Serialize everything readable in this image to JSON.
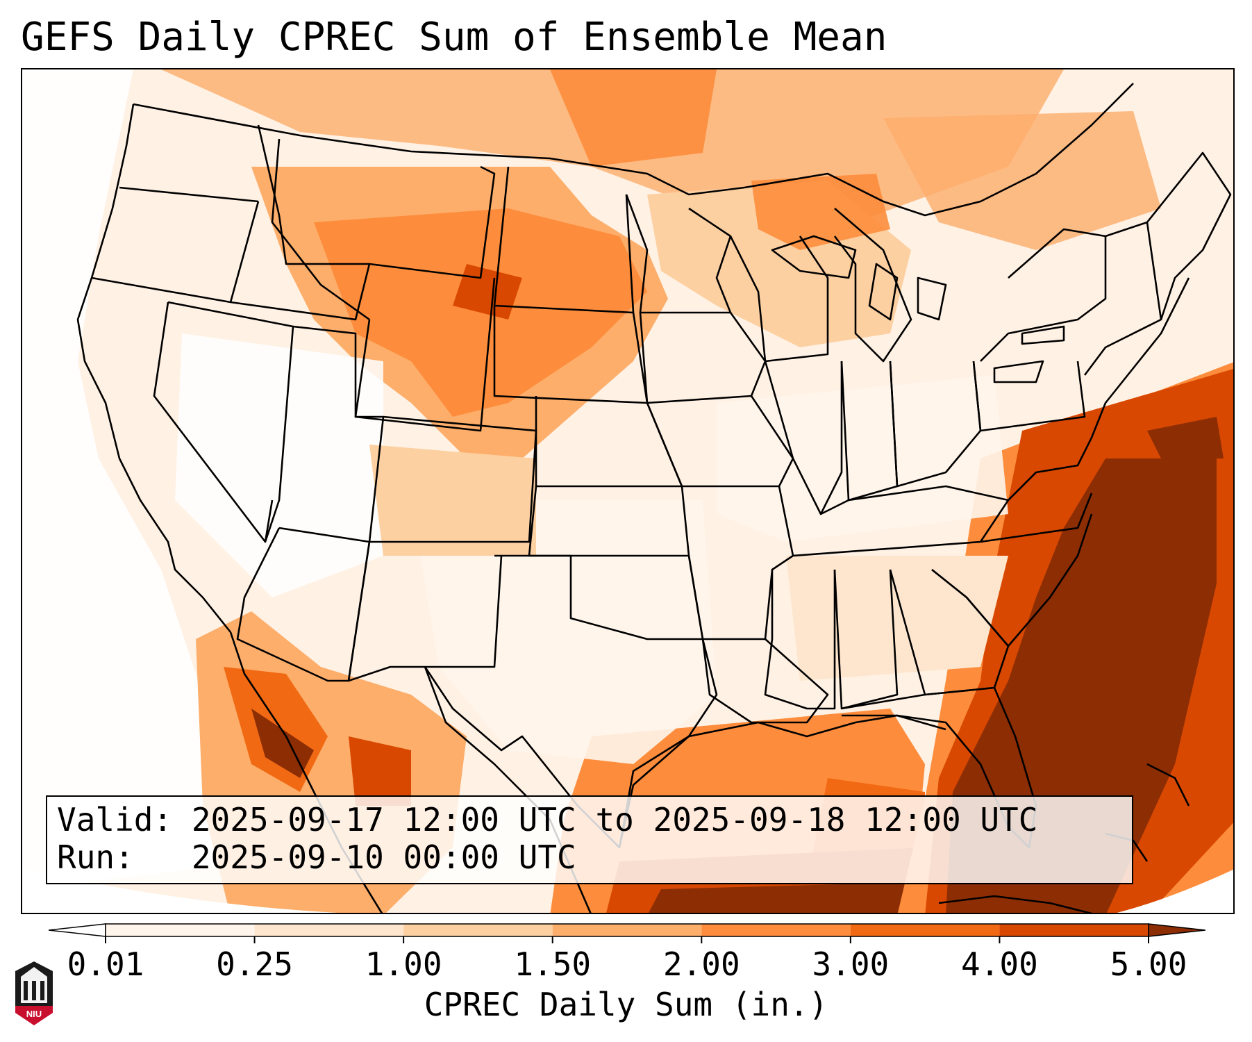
{
  "title": "GEFS Daily CPREC Sum of Ensemble Mean",
  "info": {
    "valid": "Valid: 2025-09-17 12:00 UTC to 2025-09-18 12:00 UTC",
    "run": "Run:   2025-09-10 00:00 UTC"
  },
  "colorbar": {
    "label": "CPREC Daily Sum (in.)",
    "ticks": [
      "0.01",
      "0.25",
      "1.00",
      "1.50",
      "2.00",
      "3.00",
      "4.00",
      "5.00"
    ],
    "colors": [
      "#fff5eb",
      "#fee6ce",
      "#fdd0a2",
      "#fdae6b",
      "#fd8d3c",
      "#f16913",
      "#d94801",
      "#8c2d04"
    ],
    "under_color": "#ffffff",
    "over_color": "#7f2704"
  },
  "logo": {
    "text": "NIU",
    "icon": "niu-logo-icon"
  },
  "map": {
    "region": "Continental United States",
    "projection": "Lambert Conformal",
    "line_color": "#000000"
  }
}
